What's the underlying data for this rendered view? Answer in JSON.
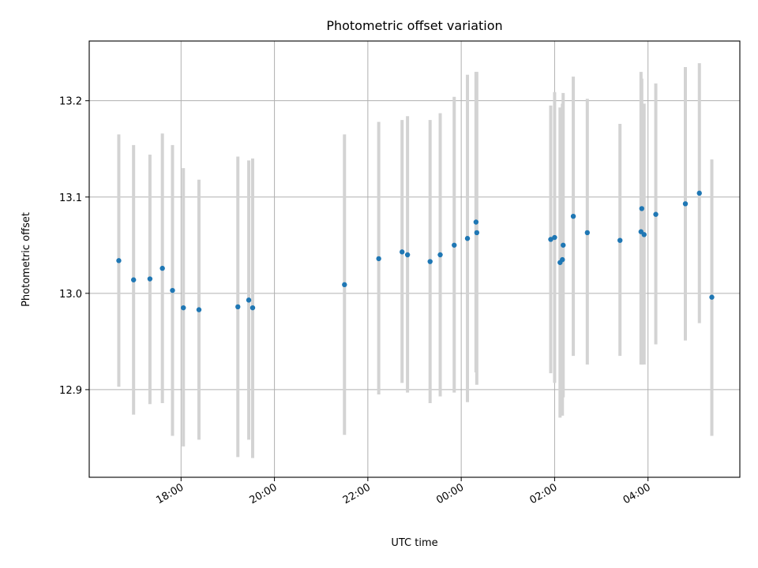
{
  "chart_data": {
    "type": "scatter",
    "title": "Photometric offset variation",
    "xlabel": "UTC time",
    "ylabel": "Photometric offset",
    "x_axis_type": "time",
    "xlim": [
      "2022-05-10T16:02",
      "2022-05-11T05:58"
    ],
    "ylim": [
      12.809,
      13.262
    ],
    "x_ticks": [
      {
        "t": "2022-05-10T18:00",
        "label": "18:00"
      },
      {
        "t": "2022-05-10T20:00",
        "label": "20:00"
      },
      {
        "t": "2022-05-10T22:00",
        "label": "22:00"
      },
      {
        "t": "2022-05-11T00:00",
        "label": "00:00"
      },
      {
        "t": "2022-05-11T02:00",
        "label": "02:00"
      },
      {
        "t": "2022-05-11T04:00",
        "label": "04:00"
      }
    ],
    "y_ticks": [
      {
        "v": 12.9,
        "label": "12.9"
      },
      {
        "v": 13.0,
        "label": "13.0"
      },
      {
        "v": 13.1,
        "label": "13.1"
      },
      {
        "v": 13.2,
        "label": "13.2"
      }
    ],
    "grid": true,
    "legend": "none",
    "point_color": "#1f77b4",
    "errorbar_color": "#d3d3d3",
    "points": [
      {
        "t": "2022-05-10T16:40",
        "y": 13.034,
        "lo": 12.903,
        "hi": 13.165
      },
      {
        "t": "2022-05-10T16:59",
        "y": 13.014,
        "lo": 12.874,
        "hi": 13.154
      },
      {
        "t": "2022-05-10T17:20",
        "y": 13.015,
        "lo": 12.885,
        "hi": 13.144
      },
      {
        "t": "2022-05-10T17:36",
        "y": 13.026,
        "lo": 12.886,
        "hi": 13.166
      },
      {
        "t": "2022-05-10T17:49",
        "y": 13.003,
        "lo": 12.852,
        "hi": 13.154
      },
      {
        "t": "2022-05-10T18:03",
        "y": 12.985,
        "lo": 12.841,
        "hi": 13.13
      },
      {
        "t": "2022-05-10T18:23",
        "y": 12.983,
        "lo": 12.848,
        "hi": 13.118
      },
      {
        "t": "2022-05-10T19:13",
        "y": 12.986,
        "lo": 12.83,
        "hi": 13.142
      },
      {
        "t": "2022-05-10T19:27",
        "y": 12.993,
        "lo": 12.848,
        "hi": 13.138
      },
      {
        "t": "2022-05-10T19:32",
        "y": 12.985,
        "lo": 12.829,
        "hi": 13.14
      },
      {
        "t": "2022-05-10T21:30",
        "y": 13.009,
        "lo": 12.853,
        "hi": 13.165
      },
      {
        "t": "2022-05-10T22:14",
        "y": 13.036,
        "lo": 12.895,
        "hi": 13.178
      },
      {
        "t": "2022-05-10T22:44",
        "y": 13.043,
        "lo": 12.907,
        "hi": 13.18
      },
      {
        "t": "2022-05-10T22:51",
        "y": 13.04,
        "lo": 12.897,
        "hi": 13.184
      },
      {
        "t": "2022-05-10T23:20",
        "y": 13.033,
        "lo": 12.886,
        "hi": 13.18
      },
      {
        "t": "2022-05-10T23:33",
        "y": 13.04,
        "lo": 12.893,
        "hi": 13.187
      },
      {
        "t": "2022-05-10T23:51",
        "y": 13.05,
        "lo": 12.897,
        "hi": 13.204
      },
      {
        "t": "2022-05-11T00:08",
        "y": 13.057,
        "lo": 12.887,
        "hi": 13.227
      },
      {
        "t": "2022-05-11T00:19",
        "y": 13.074,
        "lo": 12.918,
        "hi": 13.23
      },
      {
        "t": "2022-05-11T00:20",
        "y": 13.063,
        "lo": 12.905,
        "hi": 13.23
      },
      {
        "t": "2022-05-11T01:55",
        "y": 13.056,
        "lo": 12.917,
        "hi": 13.195
      },
      {
        "t": "2022-05-11T02:00",
        "y": 13.058,
        "lo": 12.907,
        "hi": 13.209
      },
      {
        "t": "2022-05-11T02:07",
        "y": 13.032,
        "lo": 12.871,
        "hi": 13.193
      },
      {
        "t": "2022-05-11T02:10",
        "y": 13.035,
        "lo": 12.873,
        "hi": 13.197
      },
      {
        "t": "2022-05-11T02:11",
        "y": 13.05,
        "lo": 12.892,
        "hi": 13.208
      },
      {
        "t": "2022-05-11T02:24",
        "y": 13.08,
        "lo": 12.935,
        "hi": 13.225
      },
      {
        "t": "2022-05-11T02:42",
        "y": 13.063,
        "lo": 12.926,
        "hi": 13.202
      },
      {
        "t": "2022-05-11T03:24",
        "y": 13.055,
        "lo": 12.935,
        "hi": 13.176
      },
      {
        "t": "2022-05-11T03:51",
        "y": 13.064,
        "lo": 12.926,
        "hi": 13.23
      },
      {
        "t": "2022-05-11T03:52",
        "y": 13.088,
        "lo": 12.926,
        "hi": 13.223
      },
      {
        "t": "2022-05-11T03:55",
        "y": 13.061,
        "lo": 12.926,
        "hi": 13.197
      },
      {
        "t": "2022-05-11T04:10",
        "y": 13.082,
        "lo": 12.947,
        "hi": 13.218
      },
      {
        "t": "2022-05-11T04:48",
        "y": 13.093,
        "lo": 12.951,
        "hi": 13.235
      },
      {
        "t": "2022-05-11T05:06",
        "y": 13.104,
        "lo": 12.969,
        "hi": 13.239
      },
      {
        "t": "2022-05-11T05:22",
        "y": 12.996,
        "lo": 12.852,
        "hi": 13.139
      }
    ]
  }
}
